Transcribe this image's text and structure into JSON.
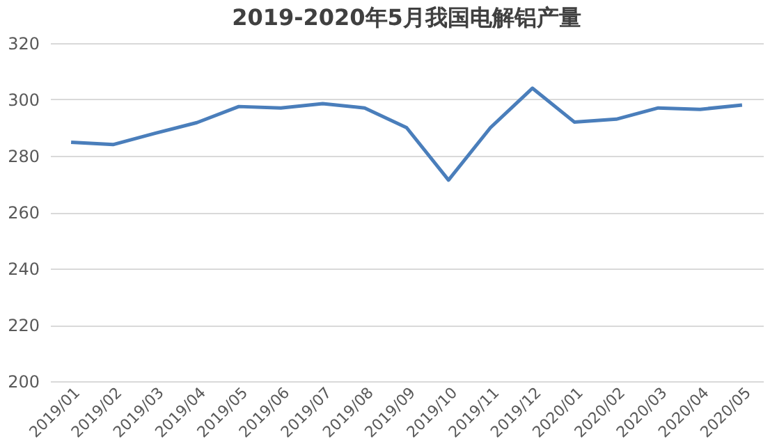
{
  "chart_data": {
    "type": "line",
    "title": "2019-2020年5月我国电解铝产量",
    "categories": [
      "2019/01",
      "2019/02",
      "2019/03",
      "2019/04",
      "2019/05",
      "2019/06",
      "2019/07",
      "2019/08",
      "2019/09",
      "2019/10",
      "2019/11",
      "2019/12",
      "2020/01",
      "2020/02",
      "2020/03",
      "2020/04",
      "2020/05"
    ],
    "series": [
      {
        "color": "#4a7ebb",
        "values": [
          284.8,
          284,
          288,
          291.8,
          297.5,
          297,
          298.5,
          297,
          290,
          271.4,
          290,
          304,
          292,
          293,
          297,
          296.5,
          298
        ]
      }
    ],
    "ylim": [
      200,
      320
    ],
    "yticks": [
      200,
      220,
      240,
      260,
      280,
      300,
      320
    ],
    "grid": "y",
    "marker": "none",
    "line_style": "solid"
  }
}
